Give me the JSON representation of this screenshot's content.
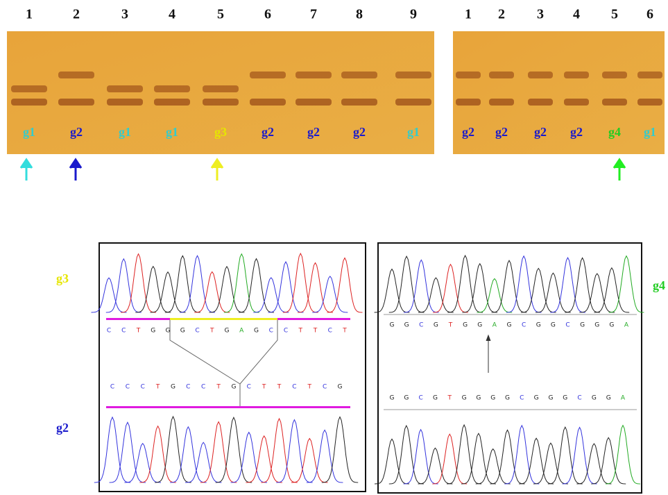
{
  "gel_left": {
    "lanes": [
      "1",
      "2",
      "3",
      "4",
      "5",
      "6",
      "7",
      "8",
      "9"
    ],
    "genotypes": [
      "g1",
      "g2",
      "g1",
      "g1",
      "g3",
      "g2",
      "g2",
      "g2",
      "g1"
    ]
  },
  "gel_right": {
    "lanes": [
      "1",
      "2",
      "3",
      "4",
      "5",
      "6"
    ],
    "genotypes": [
      "g2",
      "g2",
      "g2",
      "g2",
      "g4",
      "g1"
    ]
  },
  "genotype_colors": {
    "g1": "#33cccc",
    "g2": "#1a1acc",
    "g3": "#e6e600",
    "g4": "#22cc22"
  },
  "panel_left": {
    "label_top": "g3",
    "label_bottom": "g2",
    "sequence_top": [
      "C",
      "C",
      "T",
      "G",
      "G",
      "G",
      "C",
      "T",
      "G",
      "A",
      "G",
      "C",
      "C",
      "T",
      "T",
      "C",
      "T"
    ],
    "sequence_bottom": [
      "C",
      "C",
      "C",
      "T",
      "G",
      "C",
      "C",
      "T",
      "G",
      "C",
      "T",
      "T",
      "C",
      "T",
      "C",
      "G"
    ]
  },
  "panel_right": {
    "label": "g4",
    "sequence_top": [
      "G",
      "G",
      "C",
      "G",
      "T",
      "G",
      "G",
      "A",
      "G",
      "C",
      "G",
      "G",
      "C",
      "G",
      "G",
      "G",
      "A"
    ],
    "sequence_bottom": [
      "G",
      "G",
      "C",
      "G",
      "T",
      "G",
      "G",
      "G",
      "G",
      "C",
      "G",
      "G",
      "G",
      "C",
      "G",
      "G",
      "A"
    ]
  }
}
